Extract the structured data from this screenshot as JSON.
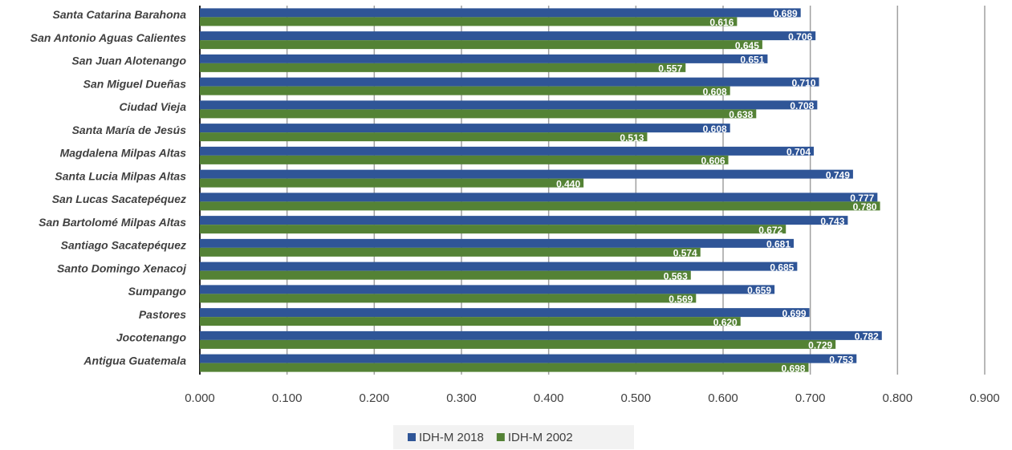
{
  "chart_data": {
    "type": "barh",
    "categories": [
      "Santa Catarina Barahona",
      "San Antonio Aguas Calientes",
      "San Juan Alotenango",
      "San Miguel Dueñas",
      "Ciudad Vieja",
      "Santa María de Jesús",
      "Magdalena Milpas Altas",
      "Santa Lucia Milpas Altas",
      "San Lucas Sacatepéquez",
      "San Bartolomé Milpas Altas",
      "Santiago Sacatepéquez",
      "Santo Domingo Xenacoj",
      "Sumpango",
      "Pastores",
      "Jocotenango",
      "Antigua Guatemala"
    ],
    "series": [
      {
        "name": "IDH-M 2018",
        "color": "#2f5597",
        "values": [
          0.689,
          0.706,
          0.651,
          0.71,
          0.708,
          0.608,
          0.704,
          0.749,
          0.777,
          0.743,
          0.681,
          0.685,
          0.659,
          0.699,
          0.782,
          0.753
        ],
        "value_labels": [
          "0.689",
          "0.706",
          "0.651",
          "0.710",
          "0.708",
          "0.608",
          "0.704",
          "0.749",
          "0.777",
          "0.743",
          "0.681",
          "0.685",
          "0.659",
          "0.699",
          "0.782",
          "0.753"
        ]
      },
      {
        "name": "IDH-M 2002",
        "color": "#548235",
        "values": [
          0.616,
          0.645,
          0.557,
          0.608,
          0.638,
          0.513,
          0.606,
          0.44,
          0.78,
          0.672,
          0.574,
          0.563,
          0.569,
          0.62,
          0.729,
          0.698
        ],
        "value_labels": [
          "0.616",
          "0.645",
          "0.557",
          "0.608",
          "0.638",
          "0.513",
          "0.606",
          "0.440",
          "0.780",
          "0.672",
          "0.574",
          "0.563",
          "0.569",
          "0.620",
          "0.729",
          "0.698"
        ]
      }
    ],
    "xlim": [
      0,
      0.9
    ],
    "xticks": [
      {
        "value": 0,
        "label": "0.000"
      },
      {
        "value": 0.1,
        "label": "0.100"
      },
      {
        "value": 0.2,
        "label": "0.200"
      },
      {
        "value": 0.3,
        "label": "0.300"
      },
      {
        "value": 0.4,
        "label": "0.400"
      },
      {
        "value": 0.5,
        "label": "0.500"
      },
      {
        "value": 0.6,
        "label": "0.600"
      },
      {
        "value": 0.7,
        "label": "0.700"
      },
      {
        "value": 0.8,
        "label": "0.800"
      },
      {
        "value": 0.9,
        "label": "0.900"
      }
    ],
    "grid": true,
    "legend": "bottom"
  }
}
